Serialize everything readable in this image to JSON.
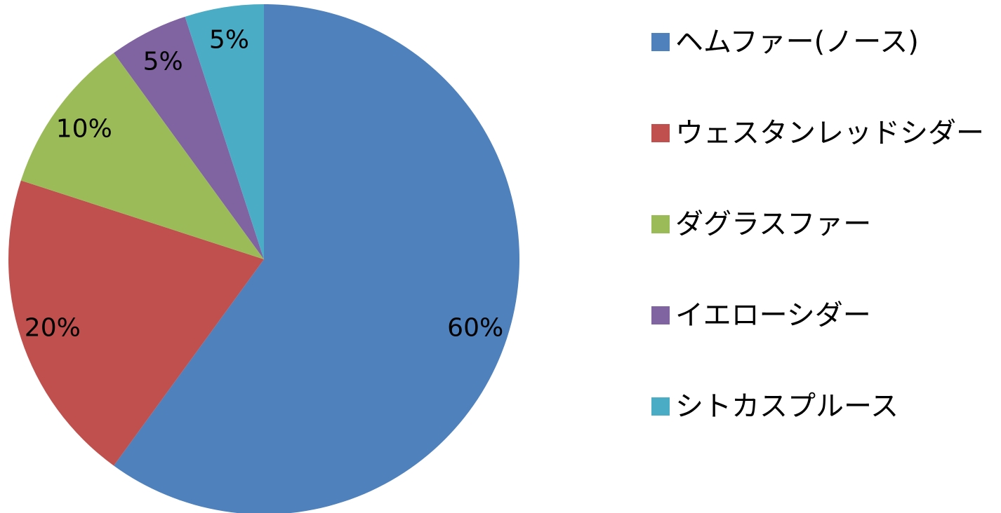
{
  "chart_data": {
    "type": "pie",
    "title": "",
    "slices": [
      {
        "label": "ヘムファー(ノース)",
        "value": 60,
        "display": "60%",
        "color": "#4F81BD"
      },
      {
        "label": "ウェスタンレッドシダー",
        "value": 20,
        "display": "20%",
        "color": "#C0504D"
      },
      {
        "label": "ダグラスファー",
        "value": 10,
        "display": "10%",
        "color": "#9BBB59"
      },
      {
        "label": "イエローシダー",
        "value": 5,
        "display": "5%",
        "color": "#8064A2"
      },
      {
        "label": "シトカスプルース",
        "value": 5,
        "display": "5%",
        "color": "#4BACC6"
      }
    ],
    "start_angle": "12 o'clock",
    "direction": "clockwise",
    "legend_position": "right"
  }
}
